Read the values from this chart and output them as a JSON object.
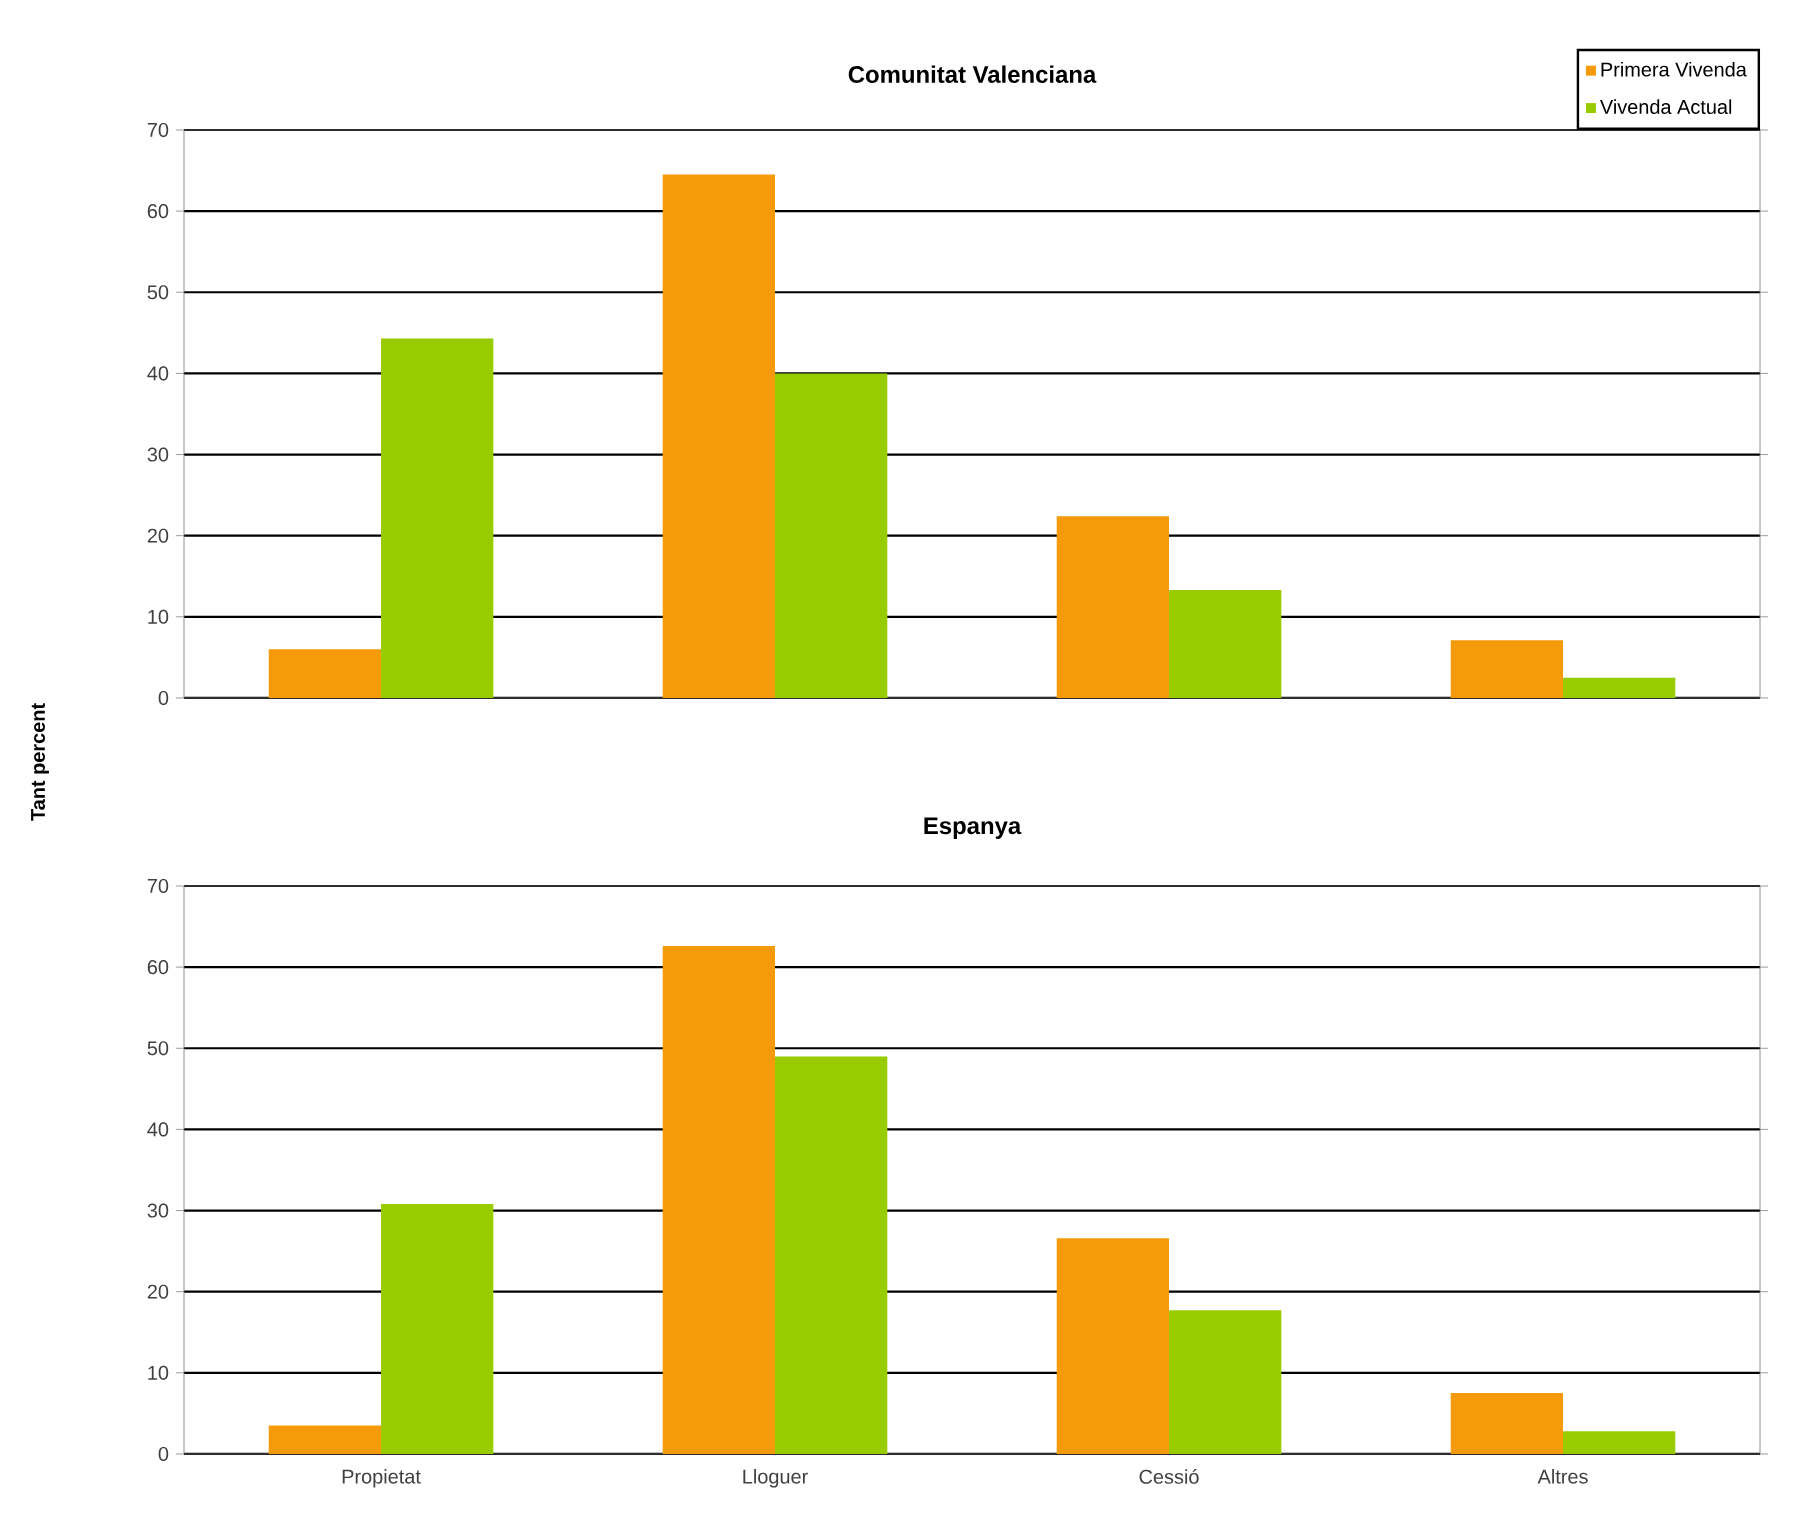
{
  "chart_data": [
    {
      "type": "bar",
      "title": "Comunitat Valenciana",
      "ylabel": "Tant percent",
      "categories": [
        null,
        null,
        null,
        null
      ],
      "series": [
        {
          "name": "Primera Vivenda",
          "color": "#f59a0a",
          "values": [
            6,
            64.5,
            22.4,
            7.1
          ]
        },
        {
          "name": "Vivenda Actual",
          "color": "#99cc00",
          "values": [
            44.3,
            40,
            13.3,
            2.5
          ]
        }
      ],
      "ylim": [
        0,
        70
      ],
      "yticks": [
        0,
        10,
        20,
        30,
        40,
        50,
        60,
        70
      ],
      "grid": "y",
      "legend": "top right",
      "tick_labels": "y"
    },
    {
      "type": "bar",
      "title": "Espanya",
      "categories": [
        "Propietat",
        "Lloguer",
        "Cessió",
        "Altres"
      ],
      "series": [
        {
          "color": "#f59a0a",
          "values": [
            3.5,
            62.6,
            26.6,
            7.5
          ]
        },
        {
          "color": "#99cc00",
          "values": [
            30.8,
            49,
            17.7,
            2.8
          ]
        }
      ],
      "ylim": [
        0,
        70
      ],
      "yticks": [
        0,
        10,
        20,
        30,
        40,
        50,
        60,
        70
      ],
      "grid": "y"
    }
  ]
}
